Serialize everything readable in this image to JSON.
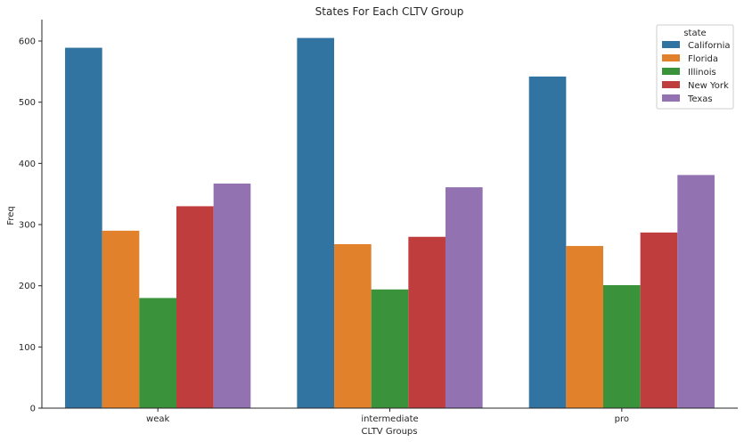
{
  "chart_data": {
    "type": "bar",
    "title": "States For Each CLTV Group",
    "xlabel": "CLTV Groups",
    "ylabel": "Freq",
    "categories": [
      "weak",
      "intermediate",
      "pro"
    ],
    "ylim": [
      0,
      635
    ],
    "yticks": [
      0,
      100,
      200,
      300,
      400,
      500,
      600
    ],
    "grid": false,
    "legend": {
      "title": "state",
      "placement": "top-right"
    },
    "series": [
      {
        "name": "California",
        "color": "#3274a1",
        "values": [
          589,
          605,
          542
        ]
      },
      {
        "name": "Florida",
        "color": "#e1812c",
        "values": [
          290,
          268,
          265
        ]
      },
      {
        "name": "Illinois",
        "color": "#3a923a",
        "values": [
          180,
          194,
          201
        ]
      },
      {
        "name": "New York",
        "color": "#c03d3e",
        "values": [
          330,
          280,
          287
        ]
      },
      {
        "name": "Texas",
        "color": "#9372b2",
        "values": [
          367,
          361,
          381
        ]
      }
    ]
  }
}
